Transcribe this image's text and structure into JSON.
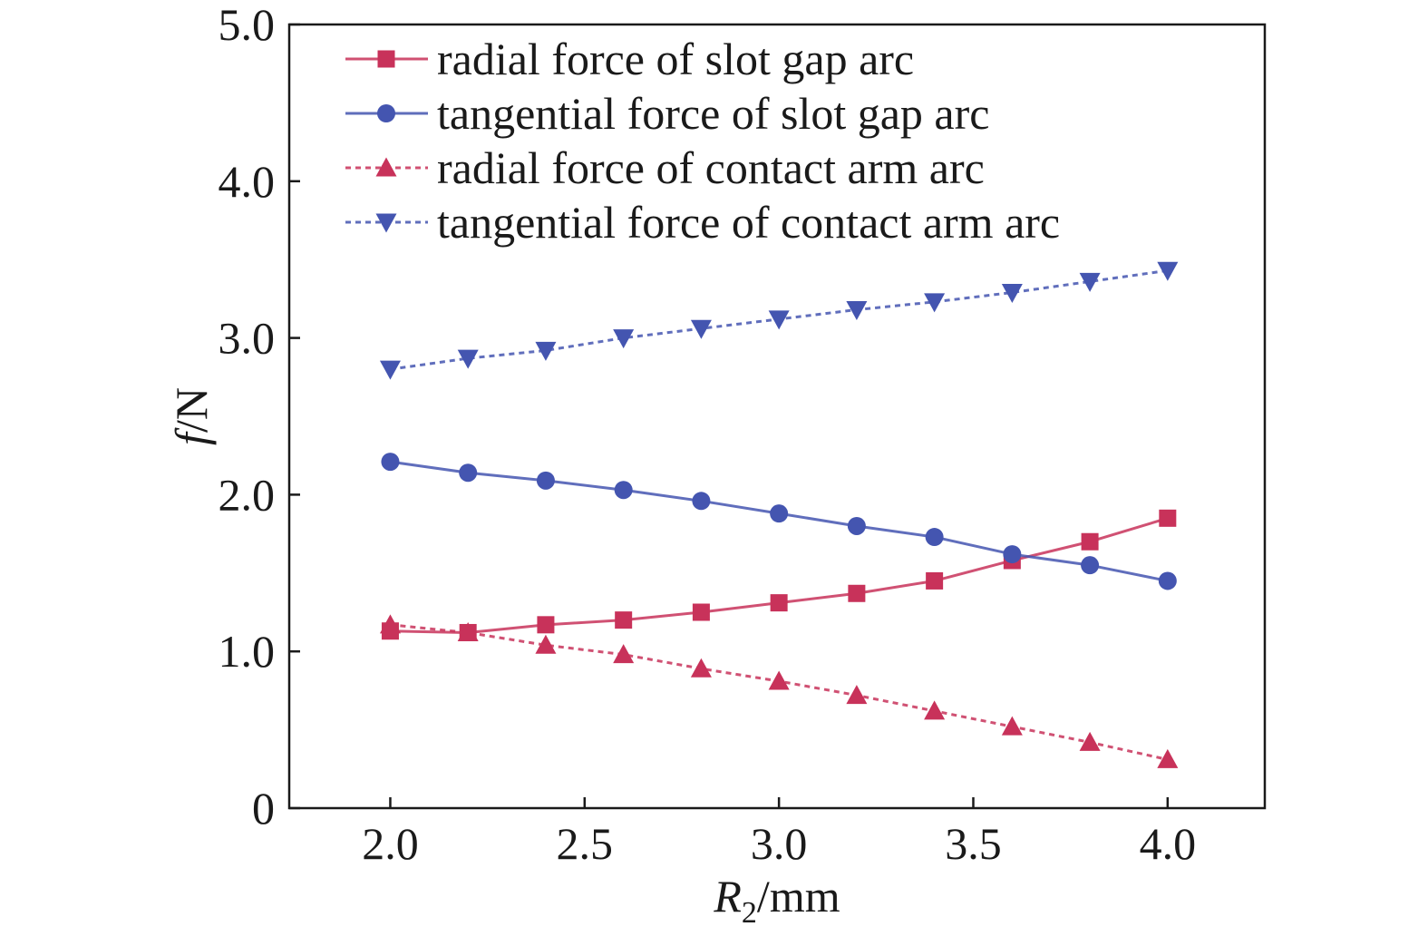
{
  "chart_data": {
    "type": "line",
    "xlabel": {
      "var": "R",
      "sub": "2",
      "unit": "/mm"
    },
    "ylabel": {
      "var": "f",
      "unit": "/N"
    },
    "xlim": [
      1.74,
      4.25
    ],
    "ylim": [
      0,
      5.0
    ],
    "xticks": [
      2.0,
      2.5,
      3.0,
      3.5,
      4.0
    ],
    "xtick_labels": [
      "2.0",
      "2.5",
      "3.0",
      "3.5",
      "4.0"
    ],
    "yticks": [
      0,
      1.0,
      2.0,
      3.0,
      4.0,
      5.0
    ],
    "ytick_labels": [
      "0",
      "1.0",
      "2.0",
      "3.0",
      "4.0",
      "5.0"
    ],
    "grid": false,
    "legend_position": "top-left",
    "x": [
      2.0,
      2.2,
      2.4,
      2.6,
      2.8,
      3.0,
      3.2,
      3.4,
      3.6,
      3.8,
      4.0
    ],
    "series": [
      {
        "name": "radial force of slot gap arc",
        "values": [
          1.13,
          1.12,
          1.17,
          1.2,
          1.25,
          1.31,
          1.37,
          1.45,
          1.58,
          1.7,
          1.85
        ],
        "color": "#c8325a",
        "marker": "square",
        "line": "solid"
      },
      {
        "name": "tangential force of slot gap arc",
        "values": [
          2.21,
          2.14,
          2.09,
          2.03,
          1.96,
          1.88,
          1.8,
          1.73,
          1.62,
          1.55,
          1.45
        ],
        "color": "#4455b0",
        "marker": "circle",
        "line": "solid"
      },
      {
        "name": "radial force of contact arm arc",
        "values": [
          1.17,
          1.12,
          1.04,
          0.98,
          0.89,
          0.81,
          0.72,
          0.62,
          0.52,
          0.42,
          0.31
        ],
        "color": "#c8325a",
        "marker": "triangle-up",
        "line": "dotted"
      },
      {
        "name": "tangential force of contact arm arc",
        "values": [
          2.8,
          2.87,
          2.92,
          3.0,
          3.06,
          3.12,
          3.18,
          3.23,
          3.29,
          3.36,
          3.43
        ],
        "color": "#4455b0",
        "marker": "triangle-down",
        "line": "dotted"
      }
    ]
  }
}
